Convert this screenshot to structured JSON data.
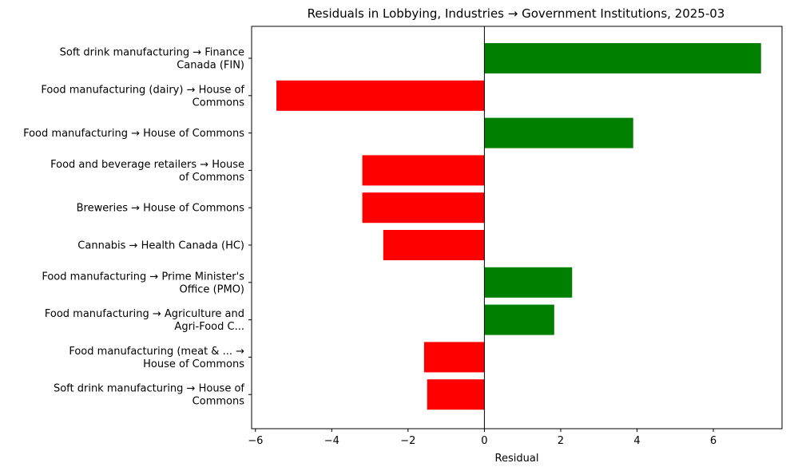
{
  "chart_data": {
    "type": "bar",
    "orientation": "horizontal",
    "title": "Residuals in Lobbying, Industries → Government Institutions, 2025-03",
    "xlabel": "Residual",
    "ylabel": "",
    "xlim": [
      -6.1,
      7.8
    ],
    "xticks": [
      -6,
      -4,
      -2,
      0,
      2,
      4,
      6
    ],
    "xtick_labels": [
      "−6",
      "−4",
      "−2",
      "0",
      "2",
      "4",
      "6"
    ],
    "grid": false,
    "colors": {
      "positive": "#008000",
      "negative": "#ff0000"
    },
    "categories": [
      [
        "Soft drink manufacturing  → Finance",
        "Canada (FIN)"
      ],
      [
        "Food manufacturing (dairy) → House of",
        "Commons"
      ],
      [
        "Food manufacturing → House of Commons"
      ],
      [
        "Food and beverage retailers → House",
        "of Commons"
      ],
      [
        "Breweries → House of Commons"
      ],
      [
        "Cannabis → Health Canada (HC)"
      ],
      [
        "Food manufacturing → Prime Minister's",
        "Office (PMO)"
      ],
      [
        "Food manufacturing → Agriculture and",
        "Agri-Food C..."
      ],
      [
        "Food manufacturing (meat & ... →",
        "House of Commons"
      ],
      [
        "Soft drink manufacturing  → House of",
        "Commons"
      ]
    ],
    "values": [
      7.25,
      -5.45,
      3.9,
      -3.2,
      -3.2,
      -2.65,
      2.3,
      1.83,
      -1.58,
      -1.5
    ]
  }
}
